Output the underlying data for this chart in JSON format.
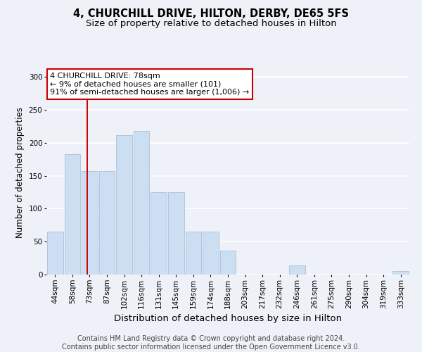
{
  "title": "4, CHURCHILL DRIVE, HILTON, DERBY, DE65 5FS",
  "subtitle": "Size of property relative to detached houses in Hilton",
  "xlabel": "Distribution of detached houses by size in Hilton",
  "ylabel": "Number of detached properties",
  "bar_labels": [
    "44sqm",
    "58sqm",
    "73sqm",
    "87sqm",
    "102sqm",
    "116sqm",
    "131sqm",
    "145sqm",
    "159sqm",
    "174sqm",
    "188sqm",
    "203sqm",
    "217sqm",
    "232sqm",
    "246sqm",
    "261sqm",
    "275sqm",
    "290sqm",
    "304sqm",
    "319sqm",
    "333sqm"
  ],
  "bar_values": [
    65,
    183,
    157,
    157,
    212,
    218,
    125,
    125,
    65,
    65,
    36,
    0,
    0,
    0,
    14,
    0,
    0,
    0,
    0,
    0,
    5
  ],
  "bar_color": "#ccdff2",
  "bar_edge_color": "#aabfd8",
  "vline_x": 1.85,
  "annotation_text": "4 CHURCHILL DRIVE: 78sqm\n← 9% of detached houses are smaller (101)\n91% of semi-detached houses are larger (1,006) →",
  "annotation_box_color": "#ffffff",
  "annotation_box_edge": "#cc0000",
  "vline_color": "#cc0000",
  "ylim": [
    0,
    310
  ],
  "yticks": [
    0,
    50,
    100,
    150,
    200,
    250,
    300
  ],
  "footer_text": "Contains HM Land Registry data © Crown copyright and database right 2024.\nContains public sector information licensed under the Open Government Licence v3.0.",
  "bg_color": "#eef2f8",
  "plot_bg_color": "#eef2f8",
  "grid_color": "#ffffff",
  "title_fontsize": 10.5,
  "subtitle_fontsize": 9.5,
  "xlabel_fontsize": 9.5,
  "ylabel_fontsize": 8.5,
  "tick_fontsize": 7.5,
  "footer_fontsize": 7.0,
  "annot_fontsize": 8.0
}
